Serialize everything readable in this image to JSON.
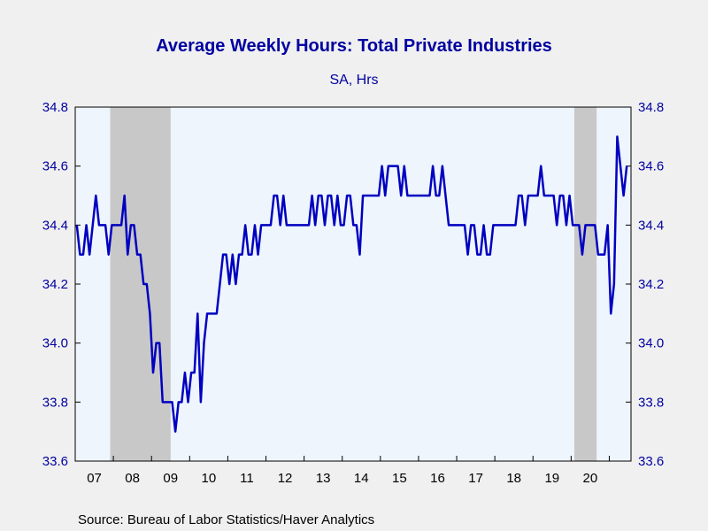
{
  "chart_data": {
    "type": "line",
    "title": "Average Weekly Hours: Total Private Industries",
    "subtitle": "SA, Hrs",
    "source": "Source:  Bureau of Labor Statistics/Haver Analytics",
    "ylim": [
      33.6,
      34.8
    ],
    "yticks": [
      "34.8",
      "34.6",
      "34.4",
      "34.2",
      "34.0",
      "33.8",
      "33.6"
    ],
    "xtick_labels": [
      "07",
      "08",
      "09",
      "10",
      "11",
      "12",
      "13",
      "14",
      "15",
      "16",
      "17",
      "18",
      "19",
      "20"
    ],
    "start": "2007-01",
    "recessions": [
      [
        "2007-12",
        "2009-06"
      ],
      [
        "2020-02",
        "2020-08"
      ]
    ],
    "colors": {
      "line": "#0000c0",
      "plot_bg": "#eef5fd",
      "recession": "#c8c8c8",
      "title": "#0000a0",
      "axis_text": "#0000a0"
    },
    "series": [
      {
        "values": [
          34.4,
          34.3,
          34.3,
          34.4,
          34.3,
          34.4,
          34.5,
          34.4,
          34.4,
          34.4,
          34.3,
          34.4,
          34.4,
          34.4,
          34.4,
          34.5,
          34.3,
          34.4,
          34.4,
          34.3,
          34.3,
          34.2,
          34.2,
          34.1,
          33.9,
          34.0,
          34.0,
          33.8,
          33.8,
          33.8,
          33.8,
          33.7,
          33.8,
          33.8,
          33.9,
          33.8,
          33.9,
          33.9,
          34.1,
          33.8,
          34.0,
          34.1,
          34.1,
          34.1,
          34.1,
          34.2,
          34.3,
          34.3,
          34.2,
          34.3,
          34.2,
          34.3,
          34.3,
          34.4,
          34.3,
          34.3,
          34.4,
          34.3,
          34.4,
          34.4,
          34.4,
          34.4,
          34.5,
          34.5,
          34.4,
          34.5,
          34.4,
          34.4,
          34.4,
          34.4,
          34.4,
          34.4,
          34.4,
          34.4,
          34.5,
          34.4,
          34.5,
          34.5,
          34.4,
          34.5,
          34.5,
          34.4,
          34.5,
          34.4,
          34.4,
          34.5,
          34.5,
          34.4,
          34.4,
          34.3,
          34.5,
          34.5,
          34.5,
          34.5,
          34.5,
          34.5,
          34.6,
          34.5,
          34.6,
          34.6,
          34.6,
          34.6,
          34.5,
          34.6,
          34.5,
          34.5,
          34.5,
          34.5,
          34.5,
          34.5,
          34.5,
          34.5,
          34.6,
          34.5,
          34.5,
          34.6,
          34.5,
          34.4,
          34.4,
          34.4,
          34.4,
          34.4,
          34.4,
          34.3,
          34.4,
          34.4,
          34.3,
          34.3,
          34.4,
          34.3,
          34.3,
          34.4,
          34.4,
          34.4,
          34.4,
          34.4,
          34.4,
          34.4,
          34.4,
          34.5,
          34.5,
          34.4,
          34.5,
          34.5,
          34.5,
          34.5,
          34.6,
          34.5,
          34.5,
          34.5,
          34.5,
          34.4,
          34.5,
          34.5,
          34.4,
          34.5,
          34.4,
          34.4,
          34.4,
          34.3,
          34.4,
          34.4,
          34.4,
          34.4,
          34.3,
          34.3,
          34.3,
          34.4,
          34.1,
          34.2,
          34.7,
          34.6,
          34.5,
          34.6
        ]
      }
    ]
  }
}
